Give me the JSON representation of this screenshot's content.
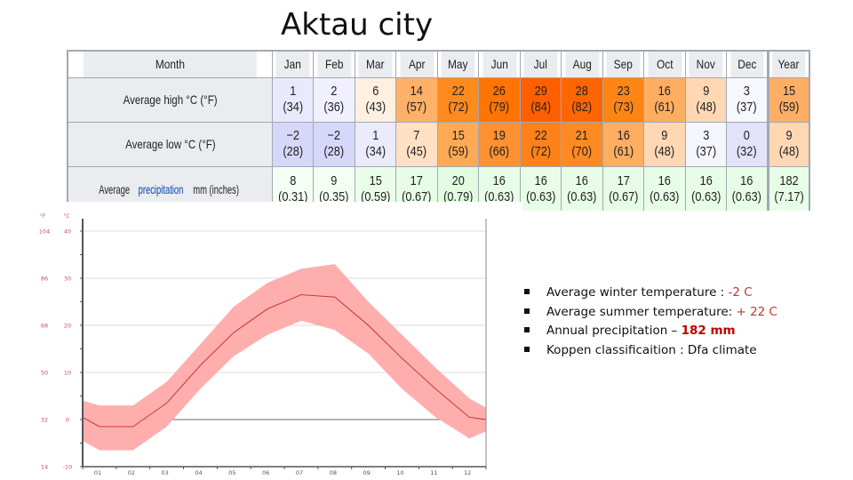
{
  "slide": {
    "title": "Aktau city"
  },
  "table": {
    "header": [
      "Month",
      "Jan",
      "Feb",
      "Mar",
      "Apr",
      "May",
      "Jun",
      "Jul",
      "Aug",
      "Sep",
      "Oct",
      "Nov",
      "Dec",
      "Year"
    ],
    "rows": [
      {
        "label": "Average high °C (°F)",
        "label_plain": "Average high °C (°F)",
        "values": [
          "1",
          "2",
          "6",
          "14",
          "22",
          "26",
          "29",
          "28",
          "23",
          "16",
          "9",
          "3",
          "15"
        ],
        "paren": [
          "(34)",
          "(36)",
          "(43)",
          "(57)",
          "(72)",
          "(79)",
          "(84)",
          "(82)",
          "(73)",
          "(61)",
          "(48)",
          "(37)",
          "(59)"
        ],
        "colors": [
          "#e9e9fd",
          "#f0f0fe",
          "#fff0e2",
          "#ffb169",
          "#ff8a1e",
          "#ff7403",
          "#ff5f00",
          "#ff6500",
          "#ff8615",
          "#ffad61",
          "#ffd8b3",
          "#f7f7fe",
          "#ffae66"
        ]
      },
      {
        "label": "Average low °C (°F)",
        "label_plain": "Average low °C (°F)",
        "values": [
          "−2",
          "−2",
          "1",
          "7",
          "15",
          "19",
          "22",
          "21",
          "16",
          "9",
          "3",
          "0",
          "9"
        ],
        "paren": [
          "(28)",
          "(28)",
          "(34)",
          "(45)",
          "(59)",
          "(66)",
          "(72)",
          "(70)",
          "(61)",
          "(48)",
          "(37)",
          "(32)",
          "(48)"
        ],
        "colors": [
          "#d7d7fa",
          "#d7d7fa",
          "#ebebfc",
          "#ffe0c4",
          "#ffa956",
          "#ff9130",
          "#ff8118",
          "#ff8a23",
          "#ffad61",
          "#ffd8b3",
          "#f5f5fe",
          "#e2e2fb",
          "#ffd8b3"
        ]
      },
      {
        "label_prefix": "Average ",
        "label_link": "precipitation",
        "label_suffix": " mm (inches)",
        "values": [
          "8",
          "9",
          "15",
          "17",
          "20",
          "16",
          "16",
          "16",
          "17",
          "16",
          "16",
          "16",
          "182"
        ],
        "paren": [
          "(0.31)",
          "(0.35)",
          "(0.59)",
          "(0.67)",
          "(0.79)",
          "(0.63)",
          "(0.63)",
          "(0.63)",
          "(0.67)",
          "(0.63)",
          "(0.63)",
          "(0.63)",
          "(7.17)"
        ],
        "colors": [
          "#f5fff5",
          "#f4fff4",
          "#e9fde9",
          "#e6fce6",
          "#e1fce1",
          "#e8fde8",
          "#e8fde8",
          "#e8fde8",
          "#e6fce6",
          "#e8fde8",
          "#e8fde8",
          "#e8fde8",
          "#e8fde8"
        ]
      }
    ]
  },
  "bullets": [
    {
      "text": "Average winter temperature : ",
      "value": "-2 C"
    },
    {
      "text": "Average summer temperature: ",
      "value": "+ 22 C"
    },
    {
      "text": "Annual precipitation – ",
      "value": "182 mm"
    },
    {
      "text": "Koppen classificaition : Dfa climate",
      "value": ""
    }
  ],
  "chart_data": {
    "type": "area",
    "title": "",
    "xlabel": "",
    "ylabel": "",
    "x": [
      "01",
      "02",
      "03",
      "04",
      "05",
      "06",
      "07",
      "08",
      "09",
      "10",
      "11",
      "12"
    ],
    "y_axis_c": {
      "label": "°C",
      "ticks": [
        40,
        30,
        20,
        10,
        0,
        -10
      ],
      "range": [
        -10,
        40
      ]
    },
    "y_axis_f": {
      "label": "°F",
      "ticks": [
        104,
        86,
        68,
        50,
        32,
        14
      ]
    },
    "series": [
      {
        "name": "Mean temperature (°C)",
        "values": [
          -1.5,
          -1.5,
          3.5,
          11.5,
          18.5,
          23.5,
          26.5,
          26,
          20,
          13,
          6.5,
          0.5
        ]
      },
      {
        "name": "Range upper (°C)",
        "values": [
          3,
          3,
          8,
          16,
          24,
          29,
          32,
          33,
          25,
          18,
          11,
          4.5
        ]
      },
      {
        "name": "Range lower (°C)",
        "values": [
          -6.5,
          -6.5,
          -1.5,
          6.5,
          13.5,
          18,
          21,
          19,
          14,
          6.5,
          0.5,
          -4
        ]
      }
    ],
    "left_edge_value_c": 0.5,
    "grid": true,
    "zero_line": true,
    "colors": {
      "band": "#ffaaaa",
      "line": "#c62828",
      "tick_labels": "#d05050",
      "grid": "#dddddd"
    }
  }
}
